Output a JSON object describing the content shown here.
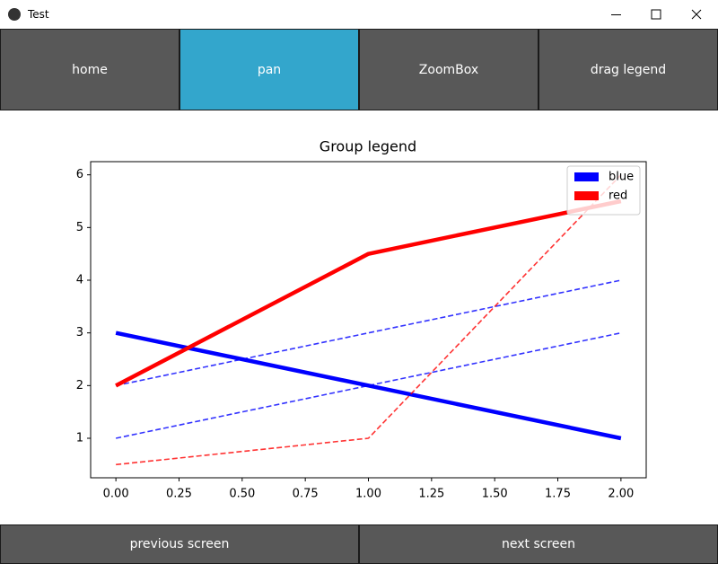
{
  "window": {
    "title": "Test"
  },
  "toolbar": {
    "buttons": [
      "home",
      "pan",
      "ZoomBox",
      "drag legend"
    ],
    "active": 1
  },
  "footer": {
    "buttons": [
      "previous screen",
      "next screen"
    ]
  },
  "chart_data": {
    "type": "line",
    "title": "Group legend",
    "x": [
      0,
      1,
      2
    ],
    "series": [
      {
        "color": "#0000ff",
        "style": "solid",
        "values": [
          3,
          2,
          1
        ]
      },
      {
        "color": "#0000ff",
        "style": "dashed",
        "values": [
          2,
          3,
          4
        ]
      },
      {
        "color": "#0000ff",
        "style": "dashed",
        "values": [
          1,
          2,
          3
        ]
      },
      {
        "color": "#ff0000",
        "style": "solid",
        "values": [
          2,
          4.5,
          5.5
        ]
      },
      {
        "color": "#ff0000",
        "style": "dashed",
        "values": [
          0.5,
          1,
          6
        ]
      }
    ],
    "legend": [
      {
        "name": "blue",
        "color": "#0000ff"
      },
      {
        "name": "red",
        "color": "#ff0000"
      }
    ],
    "legend_loc": "upper right",
    "xlim": [
      -0.1,
      2.1
    ],
    "xticks": [
      {
        "value": 0,
        "label": "0.00"
      },
      {
        "value": 0.25,
        "label": "0.25"
      },
      {
        "value": 0.5,
        "label": "0.50"
      },
      {
        "value": 0.75,
        "label": "0.75"
      },
      {
        "value": 1,
        "label": "1.00"
      },
      {
        "value": 1.25,
        "label": "1.25"
      },
      {
        "value": 1.5,
        "label": "1.50"
      },
      {
        "value": 1.75,
        "label": "1.75"
      },
      {
        "value": 2,
        "label": "2.00"
      }
    ],
    "ylim": [
      0.25,
      6.25
    ],
    "yticks": [
      1,
      2,
      3,
      4,
      5,
      6
    ]
  }
}
